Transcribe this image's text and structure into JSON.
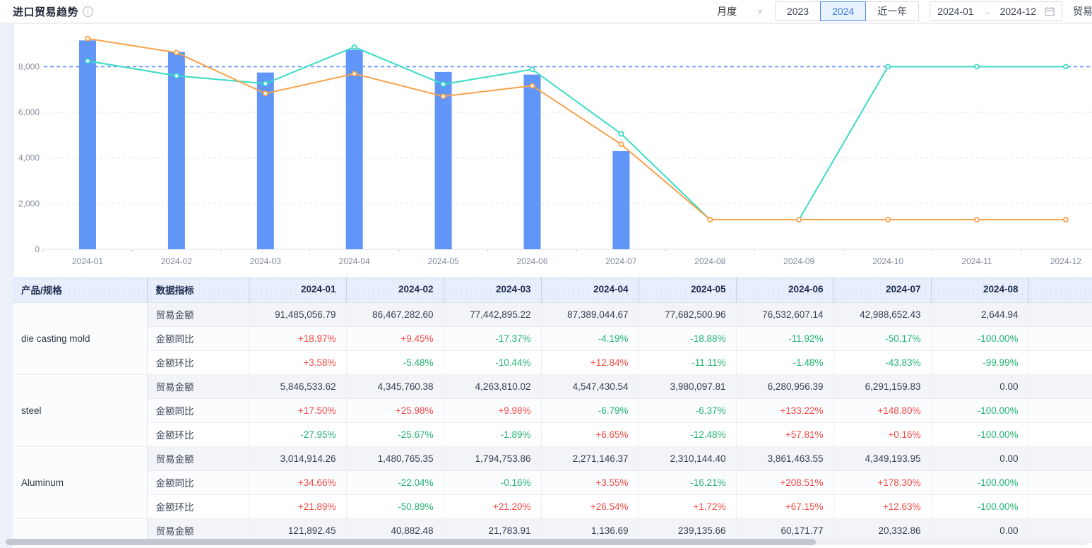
{
  "header": {
    "title": "进口贸易趋势",
    "granularity_select": {
      "value": "月度"
    },
    "year_tabs": {
      "options": [
        "2023",
        "2024",
        "近一年"
      ],
      "selected": "2024"
    },
    "date_range": {
      "start": "2024-01",
      "end": "2024-12"
    },
    "right_truncated_label": "贸易"
  },
  "chart_data": {
    "type": "bar+line composite",
    "x": [
      "2024-01",
      "2024-02",
      "2024-03",
      "2024-04",
      "2024-05",
      "2024-06",
      "2024-07",
      "2024-08",
      "2024-09",
      "2024-10",
      "2024-11",
      "2024-12"
    ],
    "yticks": [
      0,
      2000,
      4000,
      6000,
      8000
    ],
    "ytick_labels": [
      "0",
      "2,000",
      "4,000",
      "6,000",
      "8,000"
    ],
    "ylim": [
      0,
      9900
    ],
    "grid": true,
    "legend_position": "none",
    "refline": {
      "value": 8000,
      "color": "#5b8ff9",
      "style": "dashed"
    },
    "series": [
      {
        "name": "trade-amount-bar",
        "type": "bar",
        "color": "#6196f8",
        "values": [
          9148.5,
          8646.7,
          7744.3,
          8738.9,
          7768.3,
          7653.3,
          4298.9,
          0.26,
          null,
          null,
          null,
          null
        ]
      },
      {
        "name": "line-orange",
        "type": "line",
        "color": "#f9a14b",
        "values": [
          9230,
          8615,
          6825,
          7690,
          6700,
          7165,
          4600,
          1300,
          1300,
          1300,
          1300,
          1300
        ]
      },
      {
        "name": "line-teal",
        "type": "line",
        "color": "#3bdcc6",
        "values": [
          8250,
          7600,
          7260,
          8860,
          7230,
          7880,
          5060,
          1300,
          1300,
          8000,
          8000,
          8000
        ]
      }
    ]
  },
  "table": {
    "col_product": "产品/规格",
    "col_metric": "数据指标",
    "months": [
      "2024-01",
      "2024-02",
      "2024-03",
      "2024-04",
      "2024-05",
      "2024-06",
      "2024-07",
      "2024-08"
    ],
    "groups": [
      {
        "product": "die casting mold",
        "rows": [
          {
            "metric": "贸易金额",
            "values": [
              "91,485,056.79",
              "86,467,282.60",
              "77,442,895.22",
              "87,389,044.67",
              "77,682,500.96",
              "76,532,607.14",
              "42,988,652.43",
              "2,644.94"
            ]
          },
          {
            "metric": "金额同比",
            "values": [
              "+18.97%",
              "+9.45%",
              "-17.37%",
              "-4.19%",
              "-18.88%",
              "-11.92%",
              "-50.17%",
              "-100.00%"
            ]
          },
          {
            "metric": "金额环比",
            "values": [
              "+3.58%",
              "-5.48%",
              "-10.44%",
              "+12.84%",
              "-11.11%",
              "-1.48%",
              "-43.83%",
              "-99.99%"
            ]
          }
        ]
      },
      {
        "product": "steel",
        "rows": [
          {
            "metric": "贸易金额",
            "values": [
              "5,846,533.62",
              "4,345,760.38",
              "4,263,810.02",
              "4,547,430.54",
              "3,980,097.81",
              "6,280,956.39",
              "6,291,159.83",
              "0.00"
            ]
          },
          {
            "metric": "金额同比",
            "values": [
              "+17.50%",
              "+25.98%",
              "+9.98%",
              "-6.79%",
              "-6.37%",
              "+133.22%",
              "+148.80%",
              "-100.00%"
            ]
          },
          {
            "metric": "金额环比",
            "values": [
              "-27.95%",
              "-25.67%",
              "-1.89%",
              "+6.65%",
              "-12.48%",
              "+57.81%",
              "+0.16%",
              "-100.00%"
            ]
          }
        ]
      },
      {
        "product": "Aluminum",
        "rows": [
          {
            "metric": "贸易金额",
            "values": [
              "3,014,914.26",
              "1,480,765.35",
              "1,794,753.86",
              "2,271,146.37",
              "2,310,144.40",
              "3,861,463.55",
              "4,349,193.95",
              "0.00"
            ]
          },
          {
            "metric": "金额同比",
            "values": [
              "+34.66%",
              "-22.04%",
              "-0.16%",
              "+3.55%",
              "-16.21%",
              "+208.51%",
              "+178.30%",
              "-100.00%"
            ]
          },
          {
            "metric": "金额环比",
            "values": [
              "+21.89%",
              "-50.89%",
              "+21.20%",
              "+26.54%",
              "+1.72%",
              "+67.15%",
              "+12.63%",
              "-100.00%"
            ]
          }
        ]
      },
      {
        "product": "",
        "rows": [
          {
            "metric": "贸易金额",
            "values": [
              "121,892.45",
              "40,882.48",
              "21,783.91",
              "1,136.69",
              "239,135.66",
              "60,171.77",
              "20,332.86",
              "0.00"
            ]
          }
        ]
      }
    ]
  },
  "colors": {
    "bar": "#6196f8",
    "line_orange": "#f9a14b",
    "line_teal": "#3bdcc6",
    "refline": "#5b8ff9",
    "positive": "#f54a45",
    "negative": "#23b571",
    "header_bg": "#e8eefb"
  }
}
